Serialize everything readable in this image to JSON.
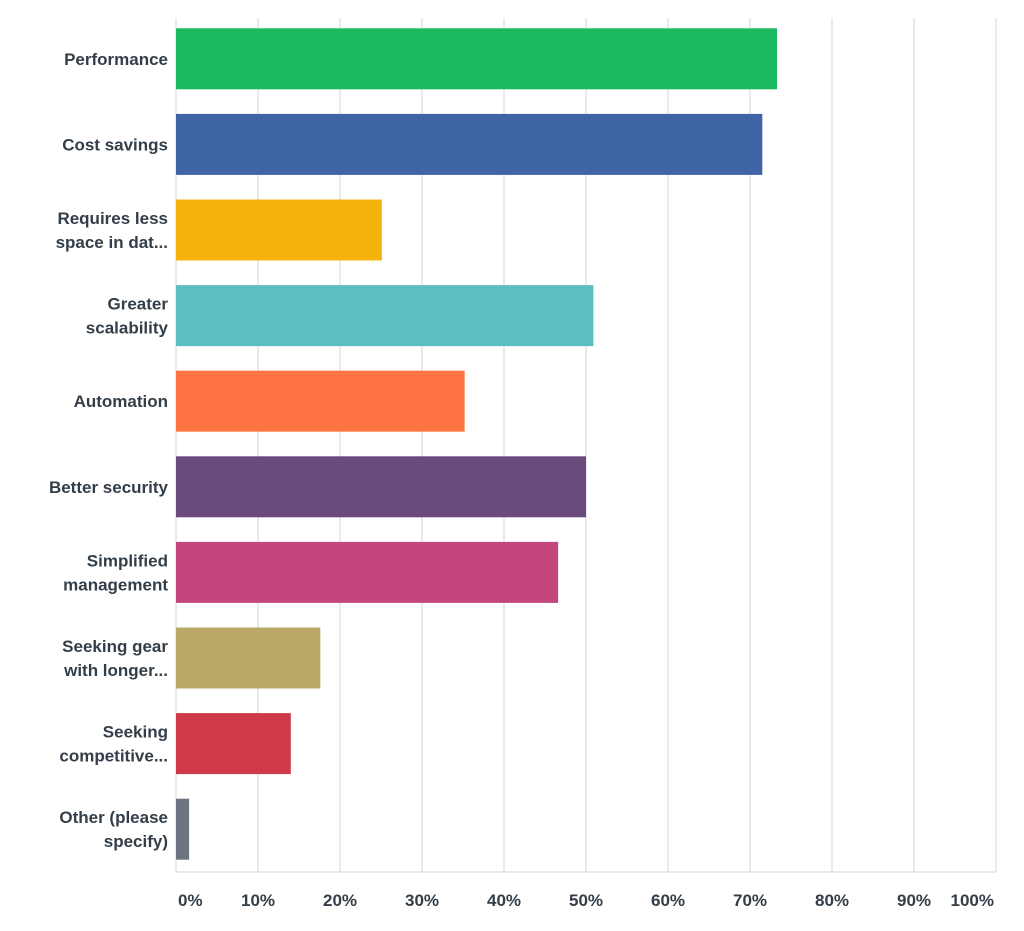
{
  "chart_data": {
    "type": "bar",
    "orientation": "horizontal",
    "categories": [
      [
        "Performance"
      ],
      [
        "Cost savings"
      ],
      [
        "Requires less",
        "space in dat..."
      ],
      [
        "Greater",
        "scalability"
      ],
      [
        "Automation"
      ],
      [
        "Better security"
      ],
      [
        "Simplified",
        "management"
      ],
      [
        "Seeking gear",
        "with longer..."
      ],
      [
        "Seeking",
        "competitive..."
      ],
      [
        "Other (please",
        "specify)"
      ]
    ],
    "values": [
      73.3,
      71.5,
      25.1,
      50.9,
      35.2,
      50.0,
      46.6,
      17.6,
      14.0,
      1.6
    ],
    "colors": [
      "#1cb85e",
      "#4065a6",
      "#f5b10c",
      "#5cbdc2",
      "#fe7543",
      "#6b4a7d",
      "#c5467c",
      "#baa968",
      "#d0394a",
      "#6b7580"
    ],
    "xticks": [
      "0%",
      "10%",
      "20%",
      "30%",
      "40%",
      "50%",
      "60%",
      "70%",
      "80%",
      "90%",
      "100%"
    ],
    "xlim": [
      0,
      100
    ],
    "grid": true,
    "title": "",
    "xlabel": "",
    "ylabel": ""
  }
}
